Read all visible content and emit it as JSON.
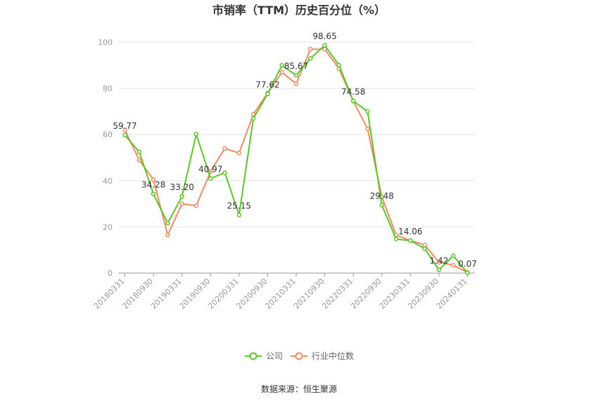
{
  "chart_data": {
    "type": "line",
    "title": "市销率（TTM）历史百分位（%）",
    "ylim": [
      0,
      100
    ],
    "yticks": [
      0,
      20,
      40,
      60,
      80,
      100
    ],
    "grid": true,
    "legend_position": "bottom",
    "x_tick_labels": [
      "20180331",
      "20180930",
      "20190331",
      "20190930",
      "20200331",
      "20200930",
      "20210331",
      "20210930",
      "20220331",
      "20220930",
      "20230331",
      "20230930",
      "20240131"
    ],
    "series": [
      {
        "name": "公司",
        "color": "#5cc52a",
        "values": [
          59.77,
          52.5,
          34.28,
          21.6,
          33.2,
          60.2,
          40.97,
          43.5,
          25.15,
          67.0,
          77.62,
          90.0,
          85.67,
          93.0,
          98.65,
          90.0,
          74.58,
          70.0,
          29.48,
          14.8,
          14.06,
          10.6,
          1.42,
          7.5,
          0.07
        ]
      },
      {
        "name": "行业中位数",
        "color": "#f58b63",
        "values": [
          62.0,
          49.0,
          40.5,
          16.5,
          30.0,
          29.2,
          44.0,
          54.0,
          52.0,
          68.8,
          78.0,
          87.0,
          82.0,
          97.0,
          97.0,
          88.5,
          74.5,
          62.5,
          33.0,
          16.5,
          14.1,
          12.2,
          4.7,
          3.4,
          0.3
        ]
      }
    ],
    "data_labels": [
      {
        "index": 0,
        "text": "59.77"
      },
      {
        "index": 2,
        "text": "34.28"
      },
      {
        "index": 4,
        "text": "33.20"
      },
      {
        "index": 6,
        "text": "40.97"
      },
      {
        "index": 8,
        "text": "25.15"
      },
      {
        "index": 10,
        "text": "77.62"
      },
      {
        "index": 12,
        "text": "85.67"
      },
      {
        "index": 14,
        "text": "98.65"
      },
      {
        "index": 16,
        "text": "74.58"
      },
      {
        "index": 18,
        "text": "29.48"
      },
      {
        "index": 20,
        "text": "14.06"
      },
      {
        "index": 22,
        "text": "1.42"
      },
      {
        "index": 24,
        "text": "0.07"
      }
    ]
  },
  "legend": {
    "company": "公司",
    "industry": "行业中位数"
  },
  "source": "数据来源：恒生聚源"
}
